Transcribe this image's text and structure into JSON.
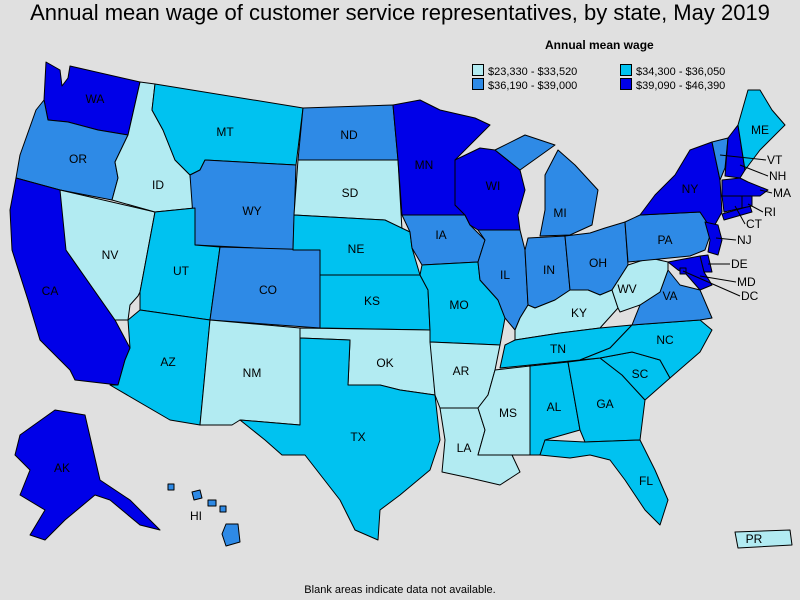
{
  "title": "Annual mean wage of customer service representatives, by state, May 2019",
  "legend": {
    "title": "Annual mean wage",
    "items": [
      {
        "label": "$23,330 - $33,520",
        "color": "#b2ebf2"
      },
      {
        "label": "$34,300 - $36,050",
        "color": "#00c2f0"
      },
      {
        "label": "$36,190 - $39,000",
        "color": "#2e8ae6"
      },
      {
        "label": "$39,090 - $46,390",
        "color": "#0000e8"
      }
    ]
  },
  "footnote": "Blank areas indicate data not available.",
  "states": [
    {
      "abbr": "WA",
      "tier": 3
    },
    {
      "abbr": "OR",
      "tier": 2
    },
    {
      "abbr": "CA",
      "tier": 3
    },
    {
      "abbr": "NV",
      "tier": 0
    },
    {
      "abbr": "ID",
      "tier": 0
    },
    {
      "abbr": "MT",
      "tier": 1
    },
    {
      "abbr": "WY",
      "tier": 2
    },
    {
      "abbr": "UT",
      "tier": 1
    },
    {
      "abbr": "AZ",
      "tier": 1
    },
    {
      "abbr": "CO",
      "tier": 2
    },
    {
      "abbr": "NM",
      "tier": 0
    },
    {
      "abbr": "ND",
      "tier": 2
    },
    {
      "abbr": "SD",
      "tier": 0
    },
    {
      "abbr": "NE",
      "tier": 1
    },
    {
      "abbr": "KS",
      "tier": 1
    },
    {
      "abbr": "OK",
      "tier": 0
    },
    {
      "abbr": "TX",
      "tier": 1
    },
    {
      "abbr": "MN",
      "tier": 3
    },
    {
      "abbr": "IA",
      "tier": 2
    },
    {
      "abbr": "MO",
      "tier": 1
    },
    {
      "abbr": "AR",
      "tier": 0
    },
    {
      "abbr": "LA",
      "tier": 0
    },
    {
      "abbr": "WI",
      "tier": 3
    },
    {
      "abbr": "IL",
      "tier": 2
    },
    {
      "abbr": "MI",
      "tier": 2
    },
    {
      "abbr": "IN",
      "tier": 2
    },
    {
      "abbr": "OH",
      "tier": 2
    },
    {
      "abbr": "KY",
      "tier": 0
    },
    {
      "abbr": "TN",
      "tier": 1
    },
    {
      "abbr": "MS",
      "tier": 0
    },
    {
      "abbr": "AL",
      "tier": 1
    },
    {
      "abbr": "GA",
      "tier": 1
    },
    {
      "abbr": "FL",
      "tier": 1
    },
    {
      "abbr": "SC",
      "tier": 1
    },
    {
      "abbr": "NC",
      "tier": 1
    },
    {
      "abbr": "VA",
      "tier": 2
    },
    {
      "abbr": "WV",
      "tier": 0
    },
    {
      "abbr": "PA",
      "tier": 2
    },
    {
      "abbr": "NY",
      "tier": 3
    },
    {
      "abbr": "VT",
      "tier": 2
    },
    {
      "abbr": "NH",
      "tier": 3
    },
    {
      "abbr": "ME",
      "tier": 1
    },
    {
      "abbr": "MA",
      "tier": 3
    },
    {
      "abbr": "RI",
      "tier": 3
    },
    {
      "abbr": "CT",
      "tier": 3
    },
    {
      "abbr": "NJ",
      "tier": 3
    },
    {
      "abbr": "DE",
      "tier": 3
    },
    {
      "abbr": "MD",
      "tier": 3
    },
    {
      "abbr": "DC",
      "tier": 3
    },
    {
      "abbr": "AK",
      "tier": 3
    },
    {
      "abbr": "HI",
      "tier": 2
    },
    {
      "abbr": "PR",
      "tier": 0
    }
  ]
}
